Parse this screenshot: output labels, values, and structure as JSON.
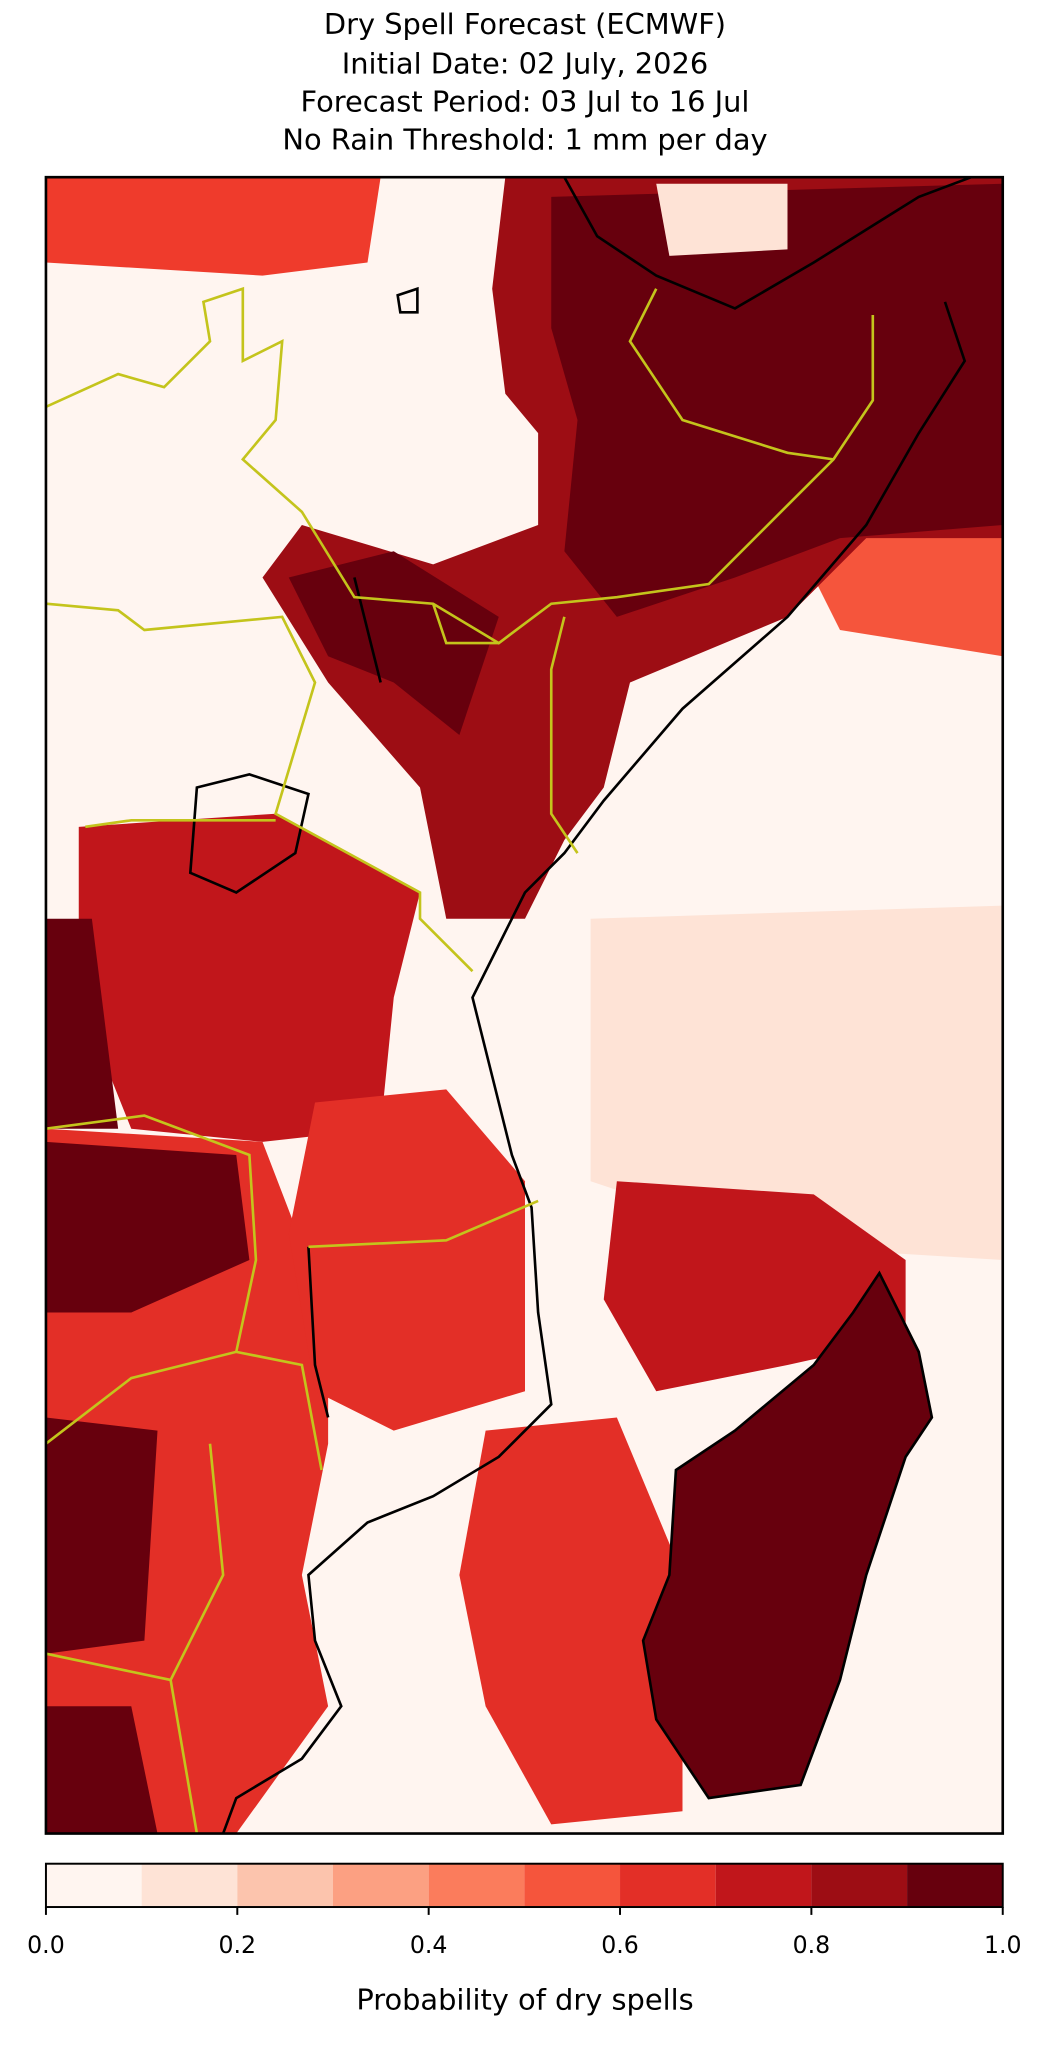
{
  "chart_data": {
    "type": "map",
    "title": [
      "Dry Spell Forecast (ECMWF)",
      "Initial Date: 02 July, 2026",
      "Forecast Period: 03 Jul to 16 Jul",
      "No Rain Threshold: 1 mm per day"
    ],
    "colorbar": {
      "label": "Probability of dry spells",
      "bounds": [
        0,
        0.1,
        0.2,
        0.3,
        0.4,
        0.5,
        0.6,
        0.7,
        0.8,
        0.9,
        1
      ],
      "colors": [
        "#fff5f0",
        "#fee3d6",
        "#fcc4ad",
        "#fca082",
        "#fb7c5c",
        "#f5553c",
        "#e32f27",
        "#c1161b",
        "#9d0d14",
        "#67000d"
      ],
      "xlim": [
        0,
        1
      ],
      "xticks": [
        {
          "value": 0,
          "label": "0.0"
        },
        0.2,
        0.4,
        0.6,
        0.8,
        {
          "value": 1,
          "label": "1.0"
        }
      ]
    }
  }
}
